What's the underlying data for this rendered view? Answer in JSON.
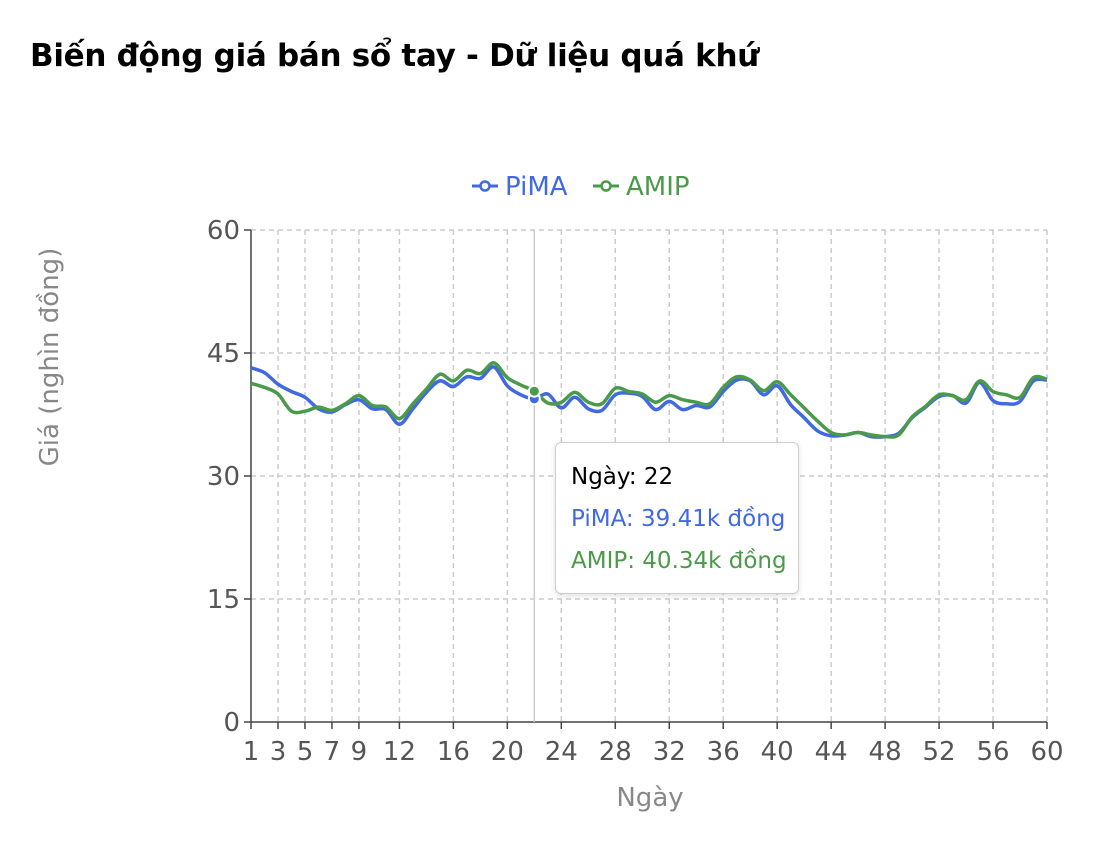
{
  "title": "Biến động giá bán sổ tay - Dữ liệu quá khứ",
  "colors": {
    "pima": "#4169e1",
    "amip": "#4a9a4a"
  },
  "chart_data": {
    "type": "line",
    "title": "Biến động giá bán sổ tay - Dữ liệu quá khứ",
    "xlabel": "Ngày",
    "ylabel": "Giá (nghìn đồng)",
    "xlim": [
      1,
      60
    ],
    "ylim": [
      0,
      60
    ],
    "x_ticks": [
      1,
      3,
      5,
      7,
      9,
      12,
      16,
      20,
      24,
      28,
      32,
      36,
      40,
      44,
      48,
      52,
      56,
      60
    ],
    "y_ticks": [
      0,
      15,
      30,
      45,
      60
    ],
    "grid": true,
    "legend_position": "top-center",
    "x": [
      1,
      2,
      3,
      4,
      5,
      6,
      7,
      8,
      9,
      10,
      11,
      12,
      13,
      14,
      15,
      16,
      17,
      18,
      19,
      20,
      21,
      22,
      23,
      24,
      25,
      26,
      27,
      28,
      29,
      30,
      31,
      32,
      33,
      34,
      35,
      36,
      37,
      38,
      39,
      40,
      41,
      42,
      43,
      44,
      45,
      46,
      47,
      48,
      49,
      50,
      51,
      52,
      53,
      54,
      55,
      56,
      57,
      58,
      59,
      60
    ],
    "series": [
      {
        "name": "PiMA",
        "color": "#4169e1",
        "values": [
          43.2,
          42.6,
          41.2,
          40.3,
          39.6,
          38.2,
          37.8,
          38.7,
          39.3,
          38.2,
          38.1,
          36.3,
          38.2,
          40.2,
          41.6,
          40.9,
          42.1,
          41.9,
          43.3,
          41.0,
          39.9,
          39.41,
          40.0,
          38.3,
          39.6,
          38.2,
          38.0,
          39.9,
          40.1,
          39.7,
          38.1,
          39.1,
          38.1,
          38.6,
          38.4,
          40.3,
          41.7,
          41.6,
          39.9,
          41.0,
          38.7,
          37.1,
          35.5,
          34.9,
          35.0,
          35.3,
          34.8,
          34.8,
          35.2,
          37.1,
          38.4,
          39.7,
          39.8,
          38.9,
          41.4,
          39.2,
          38.8,
          39.1,
          41.6,
          41.7
        ]
      },
      {
        "name": "AMIP",
        "color": "#4a9a4a",
        "values": [
          41.3,
          40.8,
          40.0,
          37.9,
          37.9,
          38.4,
          38.0,
          38.8,
          39.8,
          38.6,
          38.4,
          37.0,
          38.8,
          40.6,
          42.4,
          41.6,
          42.9,
          42.5,
          43.8,
          42.0,
          41.1,
          40.34,
          38.9,
          39.0,
          40.2,
          39.0,
          38.8,
          40.7,
          40.3,
          40.0,
          39.0,
          39.8,
          39.3,
          39.0,
          38.8,
          40.8,
          42.1,
          41.7,
          40.4,
          41.5,
          39.9,
          38.3,
          36.7,
          35.3,
          35.0,
          35.3,
          35.0,
          34.8,
          35.0,
          37.2,
          38.5,
          39.9,
          39.8,
          39.3,
          41.6,
          40.3,
          39.9,
          39.6,
          42.0,
          41.8
        ]
      }
    ],
    "tooltip": {
      "day": 22,
      "header": "Ngày: 22",
      "lines": [
        "PiMA: 39.41k đồng",
        "AMIP: 40.34k đồng"
      ]
    }
  }
}
